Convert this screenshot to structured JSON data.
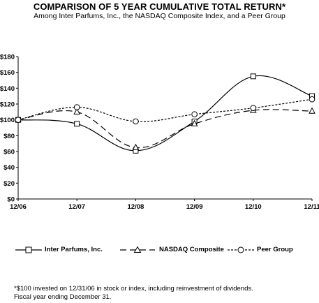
{
  "chart_data": {
    "type": "line",
    "title": "COMPARISON OF 5 YEAR CUMULATIVE TOTAL RETURN*",
    "subtitle": "Among Inter Parfums, Inc., the NASDAQ Composite Index, and a Peer Group",
    "categories": [
      "12/06",
      "12/07",
      "12/08",
      "12/09",
      "12/10",
      "12/11"
    ],
    "ylim": [
      0,
      180
    ],
    "ytick_labels": [
      "$0",
      "$20",
      "$40",
      "$60",
      "$80",
      "$100",
      "$120",
      "$140",
      "$160",
      "$180"
    ],
    "ytick_values": [
      0,
      20,
      40,
      60,
      80,
      100,
      120,
      140,
      160,
      180
    ],
    "grid": false,
    "legend_position": "bottom",
    "series": [
      {
        "name": "Inter Parfums, Inc.",
        "values": [
          100,
          95,
          61,
          98,
          155,
          130
        ],
        "marker": "square",
        "dash": "solid"
      },
      {
        "name": "NASDAQ Composite",
        "values": [
          100,
          110,
          65,
          95,
          112,
          111
        ],
        "marker": "triangle",
        "dash": "long-dash"
      },
      {
        "name": "Peer Group",
        "values": [
          100,
          116,
          98,
          107,
          115,
          126
        ],
        "marker": "circle",
        "dash": "short-dash"
      }
    ]
  },
  "footnote": {
    "line1": "*$100 invested on 12/31/06 in stock or index, including reinvestment of dividends.",
    "line2": "Fiscal year ending December 31."
  }
}
